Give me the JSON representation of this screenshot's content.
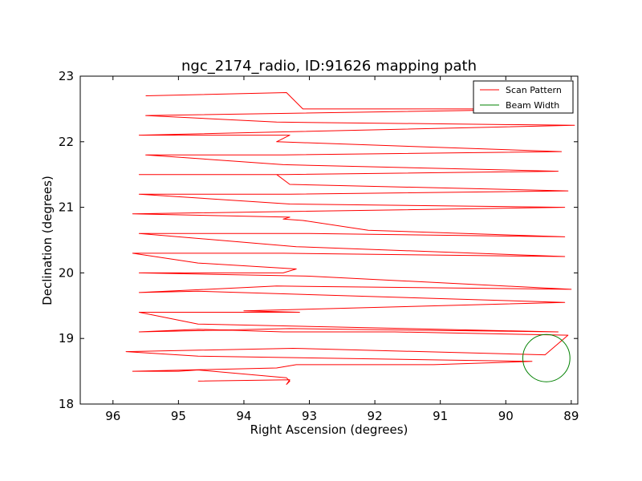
{
  "chart_data": {
    "type": "line",
    "title": "ngc_2174_radio, ID:91626 mapping path",
    "xlabel": "Right Ascension (degrees)",
    "ylabel": "Declination (degrees)",
    "xlim": [
      96.5,
      88.9
    ],
    "ylim": [
      18,
      23
    ],
    "x_ticks": [
      "96",
      "95",
      "94",
      "93",
      "92",
      "91",
      "90",
      "89"
    ],
    "x_tick_values": [
      96,
      95,
      94,
      93,
      92,
      91,
      90,
      89
    ],
    "y_ticks": [
      "18",
      "19",
      "20",
      "21",
      "22",
      "23"
    ],
    "y_tick_values": [
      18,
      19,
      20,
      21,
      22,
      23
    ],
    "grid": false,
    "legend_position": "top-right",
    "series": [
      {
        "name": "Scan Pattern",
        "color": "#ff0000",
        "x": [
          94.7,
          93.3,
          93.35,
          93.3,
          93.35,
          94.7,
          95.0,
          95.7,
          93.5,
          93.2,
          91.1,
          89.6,
          94.7,
          95.8,
          93.25,
          89.4,
          89.05,
          91.7,
          93.4,
          94.7,
          95.6,
          93.3,
          89.2,
          94.7,
          95.6,
          93.15,
          94.0,
          89.1,
          94.7,
          95.6,
          93.5,
          89.0,
          93.0,
          95.6,
          93.4,
          93.2,
          94.7,
          95.7,
          93.4,
          89.1,
          93.2,
          95.6,
          93.0,
          89.1,
          92.1,
          93.1,
          93.4,
          93.3,
          95.7,
          89.1,
          93.3,
          95.6,
          93.3,
          89.05,
          93.3,
          93.5,
          95.6,
          93.4,
          89.2,
          93.4,
          95.5,
          93.4,
          89.15,
          93.5,
          93.3,
          95.6,
          93.4,
          88.95,
          93.5,
          95.5,
          89.05,
          93.1,
          93.35,
          95.5
        ],
        "y": [
          18.35,
          18.37,
          18.3,
          18.35,
          18.4,
          18.52,
          18.5,
          18.5,
          18.55,
          18.6,
          18.6,
          18.65,
          18.73,
          18.8,
          18.85,
          18.75,
          19.05,
          19.1,
          19.1,
          19.14,
          19.1,
          19.15,
          19.1,
          19.22,
          19.4,
          19.4,
          19.42,
          19.55,
          19.72,
          19.7,
          19.8,
          19.75,
          19.95,
          20.0,
          20.0,
          20.06,
          20.15,
          20.3,
          20.3,
          20.25,
          20.4,
          20.6,
          20.6,
          20.55,
          20.65,
          20.8,
          20.82,
          20.85,
          20.9,
          21.0,
          21.05,
          21.2,
          21.2,
          21.25,
          21.35,
          21.5,
          21.5,
          21.5,
          21.55,
          21.65,
          21.8,
          21.8,
          21.85,
          22.0,
          22.1,
          22.1,
          22.15,
          22.25,
          22.3,
          22.4,
          22.5,
          22.5,
          22.75,
          22.7
        ]
      },
      {
        "name": "Beam Width",
        "color": "#008000",
        "circle": {
          "center": [
            89.38,
            18.7
          ],
          "radius_deg": 0.36
        }
      }
    ]
  }
}
